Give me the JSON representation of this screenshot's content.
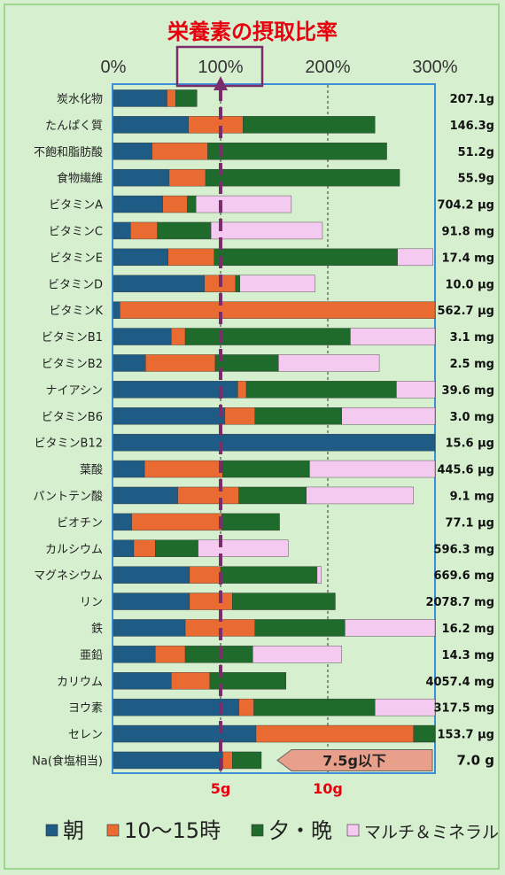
{
  "chart_data": {
    "type": "bar",
    "stacked": true,
    "orientation": "horizontal",
    "title": "栄養素の摂取比率",
    "x_ticks": [
      "0%",
      "100%",
      "200%",
      "300%"
    ],
    "xlim": [
      0,
      300
    ],
    "bottom_ticks": [
      "5g",
      "10g"
    ],
    "colors": {
      "朝": "#1e5c86",
      "10〜15時": "#ea6b32",
      "夕・晩": "#1e6b2c",
      "マルチ＆ミネラル": "#f5caf0",
      "highlight_box": "#7b2c6b",
      "reference_line": "#7b2c6b",
      "title": "#e8000e"
    },
    "series_names": [
      "朝",
      "10〜15時",
      "夕・晩",
      "マルチ＆ミネラル"
    ],
    "categories": [
      "炭水化物",
      "たんぱく質",
      "不飽和脂肪酸",
      "食物繊維",
      "ビタミンA",
      "ビタミンC",
      "ビタミンE",
      "ビタミンD",
      "ビタミンK",
      "ビタミンB1",
      "ビタミンB2",
      "ナイアシン",
      "ビタミンB6",
      "ビタミンB12",
      "葉酸",
      "パントテン酸",
      "ビオチン",
      "カルシウム",
      "マグネシウム",
      "リン",
      "鉄",
      "亜鉛",
      "カリウム",
      "ヨウ素",
      "セレン",
      "Na(食塩相当)"
    ],
    "amounts": [
      "207.1g",
      "146.3g",
      "51.2g",
      "55.9g",
      "704.2 μg",
      "91.8 mg",
      "17.4 mg",
      "10.0 μg",
      "562.7 μg",
      "3.1 mg",
      "2.5 mg",
      "39.6 mg",
      "3.0 mg",
      "15.6 μg",
      "445.6 μg",
      "9.1 mg",
      "77.1 μg",
      "596.3 mg",
      "669.6 mg",
      "2078.7 mg",
      "16.2 mg",
      "14.3 mg",
      "4057.4 mg",
      "317.5 mg",
      "153.7 μg",
      "7.0 g"
    ],
    "series": [
      {
        "name": "朝",
        "values": [
          50,
          70,
          36,
          52,
          46,
          16,
          51,
          85,
          6,
          54,
          30,
          116,
          104,
          300,
          29,
          60,
          17,
          19,
          71,
          71,
          67,
          39,
          54,
          117,
          133,
          102
        ]
      },
      {
        "name": "10〜15時",
        "values": [
          8,
          51,
          52,
          34,
          23,
          25,
          43,
          29,
          294,
          13,
          65,
          8,
          28,
          0,
          73,
          57,
          84,
          20,
          29,
          40,
          65,
          28,
          36,
          14,
          147,
          9
        ]
      },
      {
        "name": "夕・晩",
        "values": [
          20,
          123,
          167,
          181,
          8,
          50,
          171,
          4,
          0,
          154,
          59,
          140,
          81,
          0,
          81,
          63,
          54,
          40,
          90,
          96,
          84,
          63,
          71,
          113,
          20,
          27
        ]
      },
      {
        "name": "マルチ＆ミネラル",
        "values": [
          0,
          0,
          0,
          0,
          89,
          104,
          33,
          70,
          0,
          79,
          94,
          37,
          87,
          0,
          117,
          100,
          0,
          84,
          4,
          0,
          84,
          83,
          0,
          56,
          0,
          0
        ]
      }
    ],
    "salt_limit_label": "7.5g以下"
  }
}
